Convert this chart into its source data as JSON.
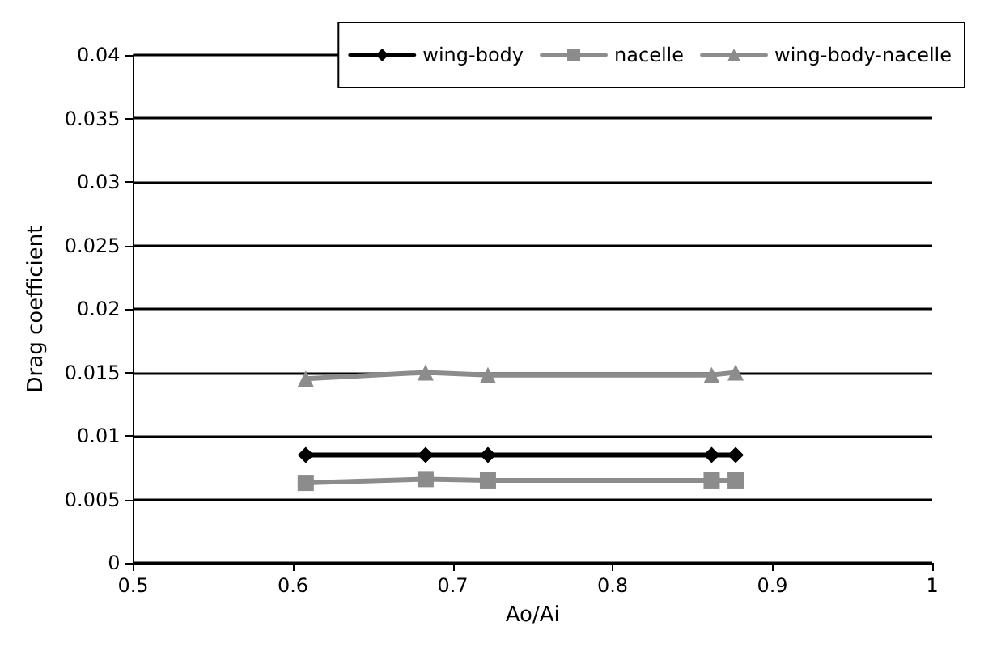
{
  "chart_data": {
    "type": "line",
    "xlabel": "Ao/Ai",
    "ylabel": "Drag coefficient",
    "x": [
      0.608,
      0.683,
      0.722,
      0.862,
      0.877
    ],
    "series": [
      {
        "name": "wing-body",
        "color": "#000000",
        "marker": "diamond",
        "values": [
          0.0085,
          0.0085,
          0.0085,
          0.0085,
          0.0085
        ]
      },
      {
        "name": "nacelle",
        "color": "#8c8c8c",
        "marker": "square",
        "values": [
          0.0063,
          0.0066,
          0.0065,
          0.0065,
          0.0065
        ]
      },
      {
        "name": "wing-body-nacelle",
        "color": "#8c8c8c",
        "marker": "triangle",
        "values": [
          0.0145,
          0.015,
          0.0148,
          0.0148,
          0.015
        ]
      }
    ],
    "xlim": [
      0.5,
      1
    ],
    "xticks": [
      0.5,
      0.6,
      0.7,
      0.8,
      0.9,
      1
    ],
    "ylim": [
      0,
      0.04
    ],
    "yticks": [
      0,
      0.005,
      0.01,
      0.015,
      0.02,
      0.025,
      0.03,
      0.035,
      0.04
    ],
    "grid": "y",
    "legend": "top right"
  }
}
